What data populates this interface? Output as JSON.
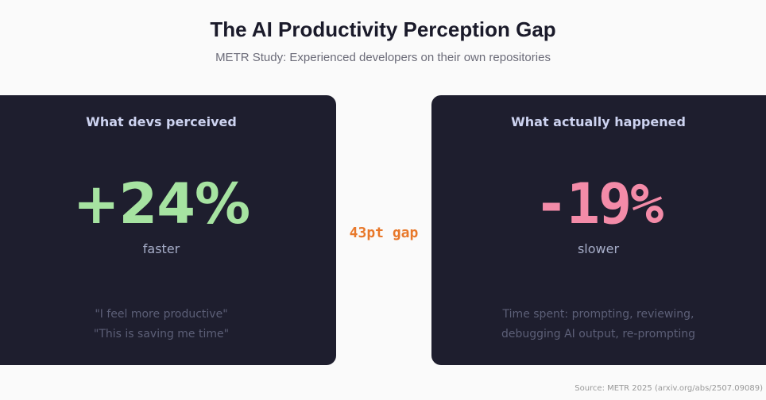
{
  "header": {
    "title": "The AI Productivity Perception Gap",
    "subtitle": "METR Study: Experienced developers on their own repositories"
  },
  "perceived": {
    "heading": "What devs perceived",
    "value": "+24%",
    "label": "faster",
    "notes": [
      "\"I feel more productive\"",
      "\"This is saving me time\""
    ],
    "color": "#a6e3a1"
  },
  "actual": {
    "heading": "What actually happened",
    "value": "-19%",
    "label": "slower",
    "notes": [
      "Time spent: prompting, reviewing,",
      "debugging AI output, re-prompting"
    ],
    "color": "#f38ba8"
  },
  "gap_label": "43pt gap",
  "source": "Source: METR 2025 (arxiv.org/abs/2507.09089)"
}
